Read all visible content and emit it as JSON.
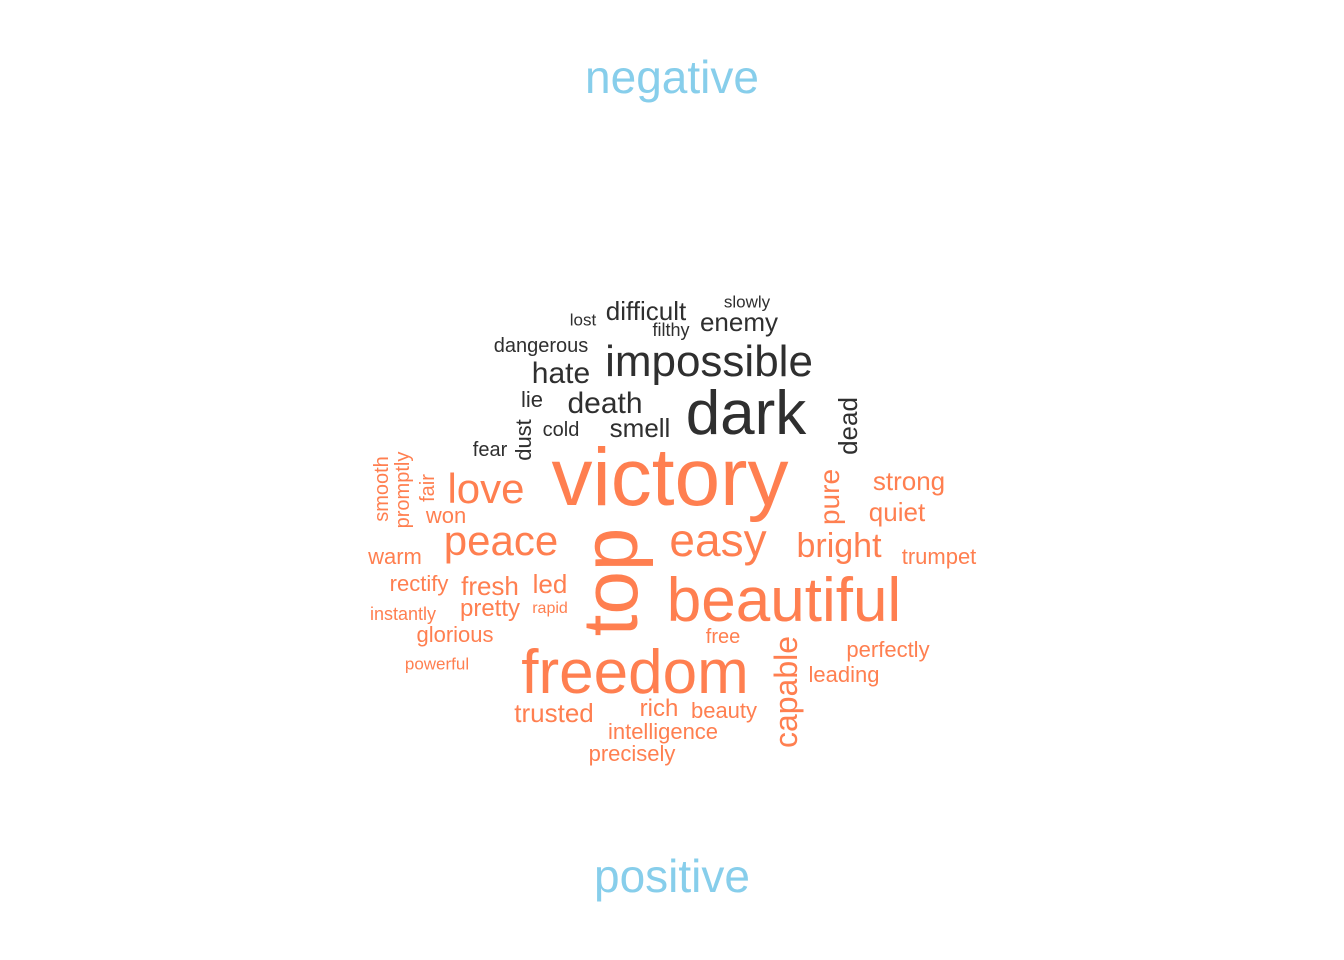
{
  "cloud": {
    "type": "comparison-wordcloud",
    "groups": [
      {
        "name": "negative",
        "color": "#2F2F2F",
        "words": [
          {
            "text": "dark",
            "rotated": false
          },
          {
            "text": "impossible",
            "rotated": false
          },
          {
            "text": "death",
            "rotated": false
          },
          {
            "text": "hate",
            "rotated": false
          },
          {
            "text": "enemy",
            "rotated": false
          },
          {
            "text": "difficult",
            "rotated": false
          },
          {
            "text": "smell",
            "rotated": false
          },
          {
            "text": "dead",
            "rotated": true
          },
          {
            "text": "dust",
            "rotated": true
          },
          {
            "text": "lie",
            "rotated": false
          },
          {
            "text": "dangerous",
            "rotated": false
          },
          {
            "text": "cold",
            "rotated": false
          },
          {
            "text": "fear",
            "rotated": false
          },
          {
            "text": "filthy",
            "rotated": false
          },
          {
            "text": "slowly",
            "rotated": false
          },
          {
            "text": "lost",
            "rotated": false
          }
        ]
      },
      {
        "name": "positive",
        "color": "#FF7F50",
        "words": [
          {
            "text": "victory",
            "rotated": false
          },
          {
            "text": "top",
            "rotated": true
          },
          {
            "text": "freedom",
            "rotated": false
          },
          {
            "text": "beautiful",
            "rotated": false
          },
          {
            "text": "easy",
            "rotated": false
          },
          {
            "text": "peace",
            "rotated": false
          },
          {
            "text": "love",
            "rotated": false
          },
          {
            "text": "bright",
            "rotated": false
          },
          {
            "text": "capable",
            "rotated": true
          },
          {
            "text": "pure",
            "rotated": true
          },
          {
            "text": "strong",
            "rotated": false
          },
          {
            "text": "quiet",
            "rotated": false
          },
          {
            "text": "trusted",
            "rotated": false
          },
          {
            "text": "fresh",
            "rotated": false
          },
          {
            "text": "led",
            "rotated": false
          },
          {
            "text": "pretty",
            "rotated": false
          },
          {
            "text": "rich",
            "rotated": false
          },
          {
            "text": "beauty",
            "rotated": false
          },
          {
            "text": "intelligence",
            "rotated": false
          },
          {
            "text": "precisely",
            "rotated": false
          },
          {
            "text": "perfectly",
            "rotated": false
          },
          {
            "text": "leading",
            "rotated": false
          },
          {
            "text": "glorious",
            "rotated": false
          },
          {
            "text": "trumpet",
            "rotated": false
          },
          {
            "text": "warm",
            "rotated": false
          },
          {
            "text": "rectify",
            "rotated": false
          },
          {
            "text": "won",
            "rotated": false
          },
          {
            "text": "free",
            "rotated": false
          },
          {
            "text": "smooth",
            "rotated": true
          },
          {
            "text": "promptly",
            "rotated": true
          },
          {
            "text": "fair",
            "rotated": true
          },
          {
            "text": "instantly",
            "rotated": false
          },
          {
            "text": "rapid",
            "rotated": false
          },
          {
            "text": "powerful",
            "rotated": false
          }
        ]
      }
    ]
  },
  "titles": {
    "negative": "negative",
    "positive": "positive",
    "color": "#87CEEB"
  }
}
